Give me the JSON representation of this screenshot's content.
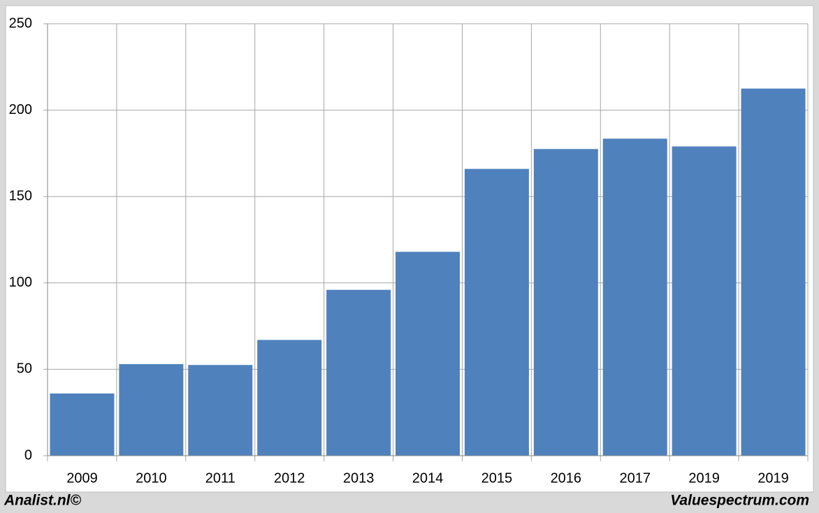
{
  "chart_data": {
    "type": "bar",
    "categories": [
      "2009",
      "2010",
      "2011",
      "2012",
      "2013",
      "2014",
      "2015",
      "2016",
      "2017",
      "2019",
      "2019"
    ],
    "values": [
      36,
      53,
      52.5,
      67,
      96,
      118,
      166,
      177.5,
      183.5,
      179,
      212.5
    ],
    "color": "#4f81bd",
    "ylim": [
      0,
      250
    ],
    "yticks": [
      0,
      50,
      100,
      150,
      200,
      250
    ],
    "grid": true,
    "footer_left": "Analist.nl©",
    "footer_right": "Valuespectrum.com"
  }
}
